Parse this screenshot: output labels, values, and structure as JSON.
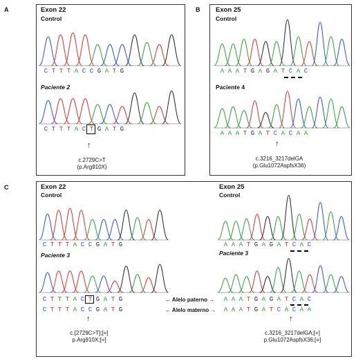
{
  "panelA": {
    "letter": "A",
    "exon": "Exon 22",
    "control_label": "Control",
    "control_seq": [
      "C",
      "T",
      "T",
      "T",
      "A",
      "C",
      "C",
      "G",
      "A",
      "T",
      "G"
    ],
    "patient_label": "Paciente 2",
    "patient_seq": [
      "C",
      "T",
      "T",
      "T",
      "A",
      "C",
      "T",
      "G",
      "A",
      "T",
      "G"
    ],
    "mutation": "c.2729C>T",
    "protein": "(p.Arg910X)"
  },
  "panelB": {
    "letter": "B",
    "exon": "Exon 25",
    "control_label": "Control",
    "control_seq": [
      "A",
      "A",
      "A",
      "T",
      "G",
      "A",
      "G",
      "A",
      "T",
      "C",
      "A",
      "C"
    ],
    "patient_label": "Paciente 4",
    "patient_seq": [
      "A",
      "A",
      "A",
      "T",
      "G",
      "A",
      "T",
      "C",
      "A",
      "C",
      "A",
      "A"
    ],
    "mutation": "c.3216_3217delGA",
    "protein": "(p.Glu1072AspfsX36)"
  },
  "panelC": {
    "letter": "C",
    "left_exon": "Exon 22",
    "left_control": "Control",
    "left_control_seq": [
      "C",
      "T",
      "T",
      "T",
      "A",
      "C",
      "C",
      "G",
      "A",
      "T",
      "G"
    ],
    "left_patient": "Paciente 3",
    "left_pat_seq1": [
      "C",
      "T",
      "T",
      "T",
      "A",
      "C",
      "T",
      "G",
      "A",
      "T",
      "G"
    ],
    "left_pat_seq2": [
      "C",
      "T",
      "T",
      "T",
      "A",
      "C",
      "C",
      "G",
      "A",
      "T",
      "G"
    ],
    "right_exon": "Exon 25",
    "right_control": "Control",
    "right_control_seq": [
      "A",
      "A",
      "A",
      "T",
      "G",
      "A",
      "G",
      "A",
      "T",
      "C",
      "A",
      "C"
    ],
    "right_patient": "Paciente 3",
    "right_pat_seq1": [
      "A",
      "A",
      "A",
      "T",
      "G",
      "A",
      "G",
      "A",
      "T",
      "C",
      "A",
      "C"
    ],
    "right_pat_seq2": [
      "A",
      "A",
      "A",
      "T",
      "G",
      "A",
      "T",
      "C",
      "A",
      "C",
      "A",
      "A"
    ],
    "allele_paternal": "← Alelo paterno →",
    "allele_maternal": "← Alelo materno →",
    "left_mutation": "c.[2729C>T];[=]",
    "left_protein": "p.Arg910X;[=]",
    "right_mutation": "c.3216_3217delGA;[=]",
    "right_protein": "p.Glu1072AspfsX36;[=]"
  },
  "base_colors": {
    "A": "#2e9e3a",
    "C": "#2a4fd6",
    "G": "#222222",
    "T": "#d8322a"
  },
  "arrow_glyph": "↑"
}
